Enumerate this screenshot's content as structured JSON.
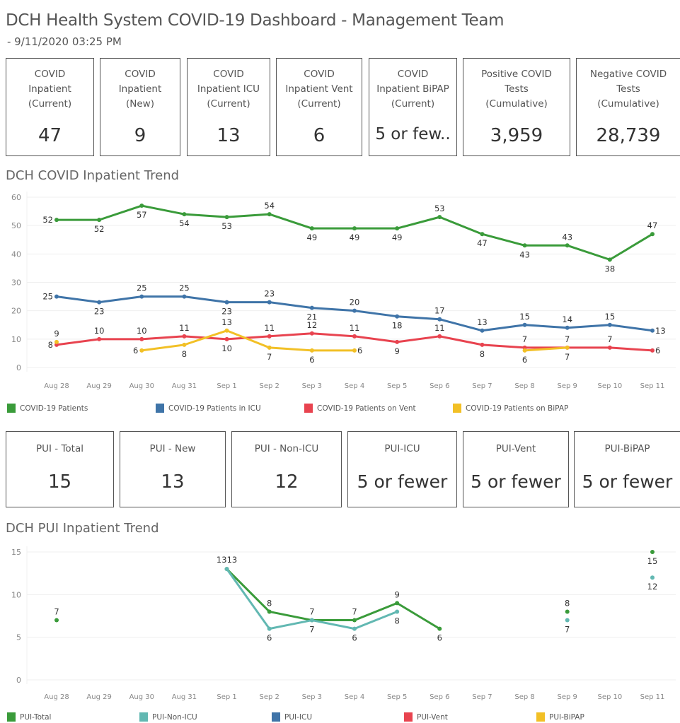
{
  "header": {
    "title": "DCH Health System COVID-19 Dashboard - Management Team",
    "subtitle": "- 9/11/2020 03:25 PM"
  },
  "kpis": [
    {
      "label": "COVID\nInpatient\n(Current)",
      "value": "47"
    },
    {
      "label": "COVID\nInpatient\n(New)",
      "value": "9"
    },
    {
      "label": "COVID\nInpatient ICU\n(Current)",
      "value": "13"
    },
    {
      "label": "COVID\nInpatient Vent\n(Current)",
      "value": "6"
    },
    {
      "label": "COVID\nInpatient BiPAP\n(Current)",
      "value": "5 or few.."
    },
    {
      "label": "Positive COVID\nTests\n(Cumulative)",
      "value": "3,959"
    },
    {
      "label": "Negative COVID\nTests\n(Cumulative)",
      "value": "28,739"
    }
  ],
  "pui_kpis": [
    {
      "label": "PUI - Total",
      "value": "15"
    },
    {
      "label": "PUI - New",
      "value": "13"
    },
    {
      "label": "PUI - Non-ICU",
      "value": "12"
    },
    {
      "label": "PUI-ICU",
      "value": "5 or fewer"
    },
    {
      "label": "PUI-Vent",
      "value": "5 or fewer"
    },
    {
      "label": "PUI-BiPAP",
      "value": "5 or fewer"
    }
  ],
  "chart_data": [
    {
      "type": "line",
      "title": "DCH COVID Inpatient Trend",
      "xlabel": "",
      "ylabel": "",
      "categories": [
        "Aug 28",
        "Aug 29",
        "Aug 30",
        "Aug 31",
        "Sep 1",
        "Sep 2",
        "Sep 3",
        "Sep 4",
        "Sep 5",
        "Sep 6",
        "Sep 7",
        "Sep 8",
        "Sep 9",
        "Sep 10",
        "Sep 11"
      ],
      "yticks": [
        0,
        10,
        20,
        30,
        40,
        50,
        60
      ],
      "ylim": [
        0,
        60
      ],
      "grid": true,
      "legend": "bottom",
      "series": [
        {
          "name": "COVID-19 Patients",
          "color": "#3a9b3a",
          "values": [
            52,
            52,
            57,
            54,
            53,
            54,
            49,
            49,
            49,
            53,
            47,
            43,
            43,
            38,
            47
          ],
          "label_pos": [
            "left",
            "below",
            "below",
            "below",
            "below",
            "above",
            "below",
            "below",
            "below",
            "above",
            "below",
            "below",
            "above",
            "below",
            "above"
          ]
        },
        {
          "name": "COVID-19 Patients in ICU",
          "color": "#3f74a8",
          "values": [
            25,
            23,
            25,
            25,
            23,
            23,
            21,
            20,
            18,
            17,
            13,
            15,
            14,
            15,
            13
          ],
          "label_pos": [
            "left",
            "below",
            "above",
            "above",
            "below",
            "above",
            "below",
            "above",
            "below",
            "above",
            "above",
            "above",
            "above",
            "above",
            "right"
          ]
        },
        {
          "name": "COVID-19 Patients on Vent",
          "color": "#e8434f",
          "values": [
            8,
            10,
            10,
            11,
            10,
            11,
            12,
            11,
            9,
            11,
            8,
            7,
            7,
            7,
            6
          ],
          "label_pos": [
            "left",
            "above",
            "above",
            "above",
            "below",
            "above",
            "above",
            "above",
            "below",
            "above",
            "below",
            "above",
            "above",
            "above",
            "right"
          ]
        },
        {
          "name": "COVID-19 Patients on BiPAP",
          "color": "#f2c026",
          "values": [
            9,
            null,
            6,
            8,
            13,
            7,
            6,
            6,
            null,
            null,
            null,
            6,
            7,
            null,
            null
          ],
          "label_pos": [
            "above",
            null,
            "left",
            "below",
            "above",
            "below",
            "below",
            "right",
            null,
            null,
            null,
            "below",
            "below",
            null,
            null
          ]
        }
      ]
    },
    {
      "type": "line",
      "title": "DCH PUI Inpatient Trend",
      "xlabel": "",
      "ylabel": "",
      "categories": [
        "Aug 28",
        "Aug 29",
        "Aug 30",
        "Aug 31",
        "Sep 1",
        "Sep 2",
        "Sep 3",
        "Sep 4",
        "Sep 5",
        "Sep 6",
        "Sep 7",
        "Sep 8",
        "Sep 9",
        "Sep 10",
        "Sep 11"
      ],
      "yticks": [
        0,
        5,
        10,
        15
      ],
      "ylim": [
        0,
        15
      ],
      "grid": true,
      "legend": "bottom",
      "series": [
        {
          "name": "PUI-Total",
          "color": "#3a9b3a",
          "values": [
            7,
            null,
            null,
            null,
            13,
            8,
            7,
            7,
            9,
            6,
            null,
            null,
            8,
            null,
            15
          ],
          "label_pos": [
            "above",
            null,
            null,
            null,
            "above-right",
            "above",
            "above",
            "above",
            "above",
            "below",
            null,
            null,
            "above",
            null,
            "below"
          ]
        },
        {
          "name": "PUI-Non-ICU",
          "color": "#62b8b2",
          "values": [
            null,
            null,
            null,
            null,
            13,
            6,
            7,
            6,
            8,
            null,
            null,
            null,
            7,
            null,
            12
          ],
          "label_pos": [
            null,
            null,
            null,
            null,
            "above-left",
            "below",
            "below",
            "below",
            "below",
            null,
            null,
            null,
            "below",
            null,
            "below"
          ]
        },
        {
          "name": "PUI-ICU",
          "color": "#3f74a8",
          "values": [
            null,
            null,
            null,
            null,
            null,
            null,
            null,
            null,
            null,
            null,
            null,
            null,
            null,
            null,
            null
          ],
          "label_pos": []
        },
        {
          "name": "PUI-Vent",
          "color": "#e8434f",
          "values": [
            null,
            null,
            null,
            null,
            null,
            null,
            null,
            null,
            null,
            null,
            null,
            null,
            null,
            null,
            null
          ],
          "label_pos": []
        },
        {
          "name": "PUI-BiPAP",
          "color": "#f2c026",
          "values": [
            null,
            null,
            null,
            null,
            null,
            null,
            null,
            null,
            null,
            null,
            null,
            null,
            null,
            null,
            null
          ],
          "label_pos": []
        }
      ]
    }
  ]
}
